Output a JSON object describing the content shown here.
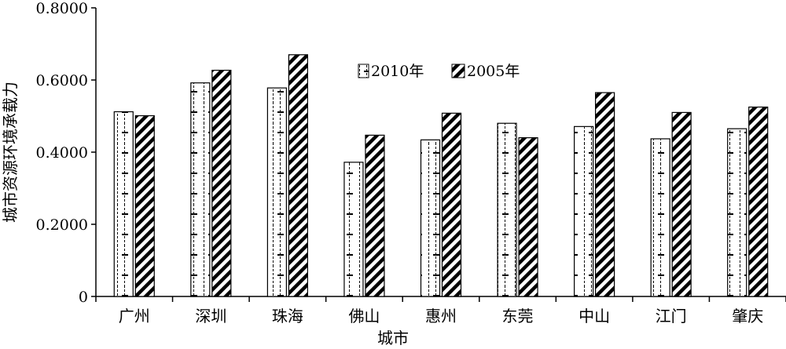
{
  "chart_data": {
    "type": "bar",
    "xlabel": "城市",
    "ylabel": "城市资源环境承载力",
    "ylim": [
      0,
      0.8
    ],
    "yticks": [
      "0",
      "0.2000",
      "0.4000",
      "0.6000",
      "0.8000"
    ],
    "ytick_values": [
      0,
      0.2,
      0.4,
      0.6,
      0.8
    ],
    "categories": [
      "广州",
      "深圳",
      "珠海",
      "佛山",
      "惠州",
      "东莞",
      "中山",
      "江门",
      "肇庆"
    ],
    "series": [
      {
        "name": "2010年",
        "values": [
          0.512,
          0.592,
          0.578,
          0.372,
          0.434,
          0.48,
          0.471,
          0.437,
          0.465
        ]
      },
      {
        "name": "2005年",
        "values": [
          0.501,
          0.627,
          0.67,
          0.447,
          0.508,
          0.44,
          0.565,
          0.51,
          0.525
        ]
      }
    ],
    "legend_position": "top-center",
    "grid": false
  }
}
